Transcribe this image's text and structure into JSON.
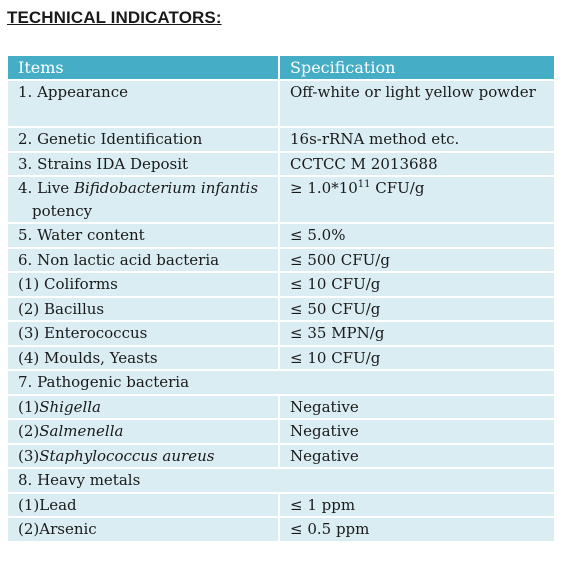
{
  "heading": "TECHNICAL INDICATORS:",
  "table": {
    "col_items": "Items",
    "col_spec": "Specification",
    "rows": [
      {
        "item": "1. Appearance",
        "spec": "Off-white or light yellow powder"
      },
      {
        "item": "2. Genetic Identification",
        "spec": "16s-rRNA method etc."
      },
      {
        "item": "3. Strains IDA Deposit",
        "spec": "CCTCC M 2013688"
      },
      {
        "item_prefix": "4. Live ",
        "item_italic": "Bifidobacterium infantis",
        "item_suffix": "potency",
        "spec_prefix": "≥ 1.0*10",
        "spec_sup": "11",
        "spec_suffix": " CFU/g"
      },
      {
        "item": "5. Water content",
        "spec": "≤ 5.0%"
      },
      {
        "item": "6. Non lactic acid bacteria",
        "spec": "≤ 500 CFU/g"
      },
      {
        "item": "(1) Coliforms",
        "spec": "≤ 10 CFU/g"
      },
      {
        "item": "(2) Bacillus",
        "spec": "≤ 50 CFU/g"
      },
      {
        "item": "(3) Enterococcus",
        "spec": "≤ 35 MPN/g"
      },
      {
        "item": "(4) Moulds, Yeasts",
        "spec": "≤ 10 CFU/g"
      },
      {
        "item": "7. Pathogenic bacteria",
        "spec": ""
      },
      {
        "item_prefix": "(1)",
        "item_italic": "Shigella",
        "spec": "Negative"
      },
      {
        "item_prefix": "(2)",
        "item_italic": "Salmenella",
        "spec": "Negative"
      },
      {
        "item_prefix": "(3)",
        "item_italic": "Staphylococcus aureus",
        "spec": "Negative"
      },
      {
        "item": "8. Heavy metals",
        "spec": ""
      },
      {
        "item": "(1)Lead",
        "spec": "≤ 1 ppm"
      },
      {
        "item": "(2)Arsenic",
        "spec": "≤ 0.5 ppm"
      }
    ]
  }
}
